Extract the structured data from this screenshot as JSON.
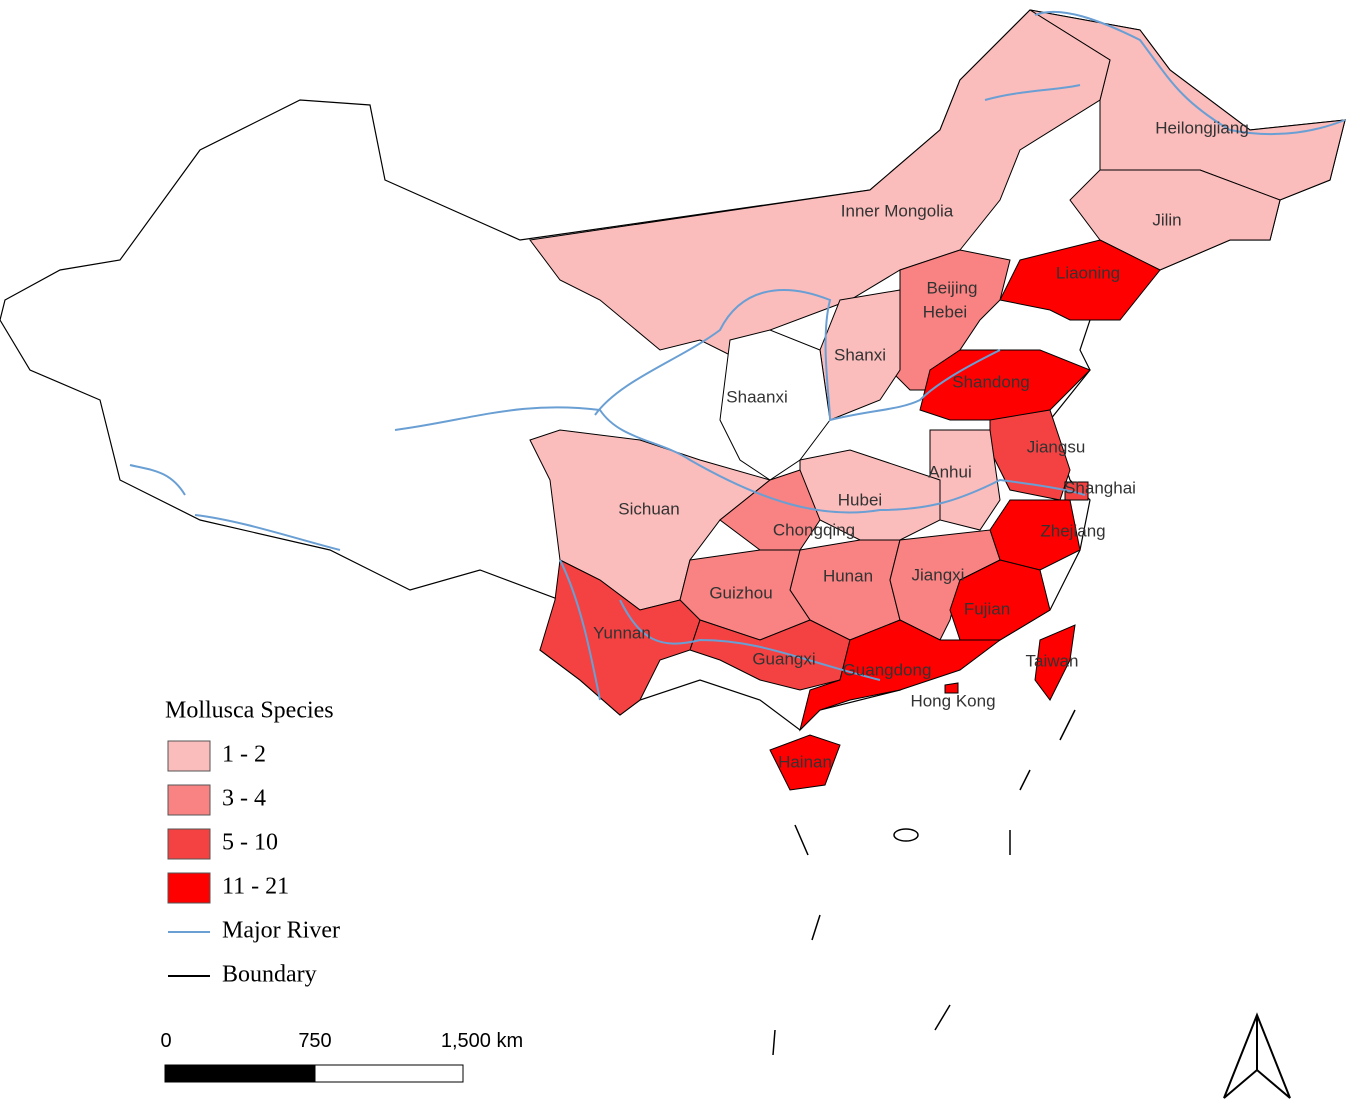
{
  "map": {
    "regions": [
      {
        "name": "Heilongjiang",
        "color": "#fbbcbc"
      },
      {
        "name": "Inner Mongolia",
        "color": "#fbbcbc"
      },
      {
        "name": "Jilin",
        "color": "#fbbcbc"
      },
      {
        "name": "Liaoning",
        "color": "#ff0000"
      },
      {
        "name": "Beijing",
        "color": "#f98282"
      },
      {
        "name": "Hebei",
        "color": "#f98282"
      },
      {
        "name": "Shanxi",
        "color": "#fbbcbc"
      },
      {
        "name": "Shaanxi",
        "color": "#ffffff"
      },
      {
        "name": "Shandong",
        "color": "#ff0000"
      },
      {
        "name": "Jiangsu",
        "color": "#f44242"
      },
      {
        "name": "Anhui",
        "color": "#fbbcbc"
      },
      {
        "name": "Shanghai",
        "color": "#f44242"
      },
      {
        "name": "Hubei",
        "color": "#fbbcbc"
      },
      {
        "name": "Sichuan",
        "color": "#fbbcbc"
      },
      {
        "name": "Chongqing",
        "color": "#f98282"
      },
      {
        "name": "Zhejiang",
        "color": "#ff0000"
      },
      {
        "name": "Hunan",
        "color": "#f98282"
      },
      {
        "name": "Jiangxi",
        "color": "#f98282"
      },
      {
        "name": "Guizhou",
        "color": "#f98282"
      },
      {
        "name": "Fujian",
        "color": "#ff0000"
      },
      {
        "name": "Yunnan",
        "color": "#f44242"
      },
      {
        "name": "Guangxi",
        "color": "#f44242"
      },
      {
        "name": "Guangdong",
        "color": "#ff0000"
      },
      {
        "name": "Taiwan",
        "color": "#ff0000"
      },
      {
        "name": "Hong Kong",
        "color": "#ff0000"
      },
      {
        "name": "Hainan",
        "color": "#ff0000"
      }
    ],
    "legend": {
      "title": "Mollusca Species",
      "classes": [
        {
          "label": "1 - 2",
          "color": "#fbbcbc"
        },
        {
          "label": "3 - 4",
          "color": "#f98282"
        },
        {
          "label": "5 - 10",
          "color": "#f44242"
        },
        {
          "label": "11 - 21",
          "color": "#ff0000"
        }
      ],
      "lines": [
        {
          "label": "Major River",
          "color": "#6a9fd4"
        },
        {
          "label": "Boundary",
          "color": "#000000"
        }
      ]
    },
    "scale_bar": {
      "labels": [
        "0",
        "750",
        "1,500 km"
      ]
    }
  }
}
